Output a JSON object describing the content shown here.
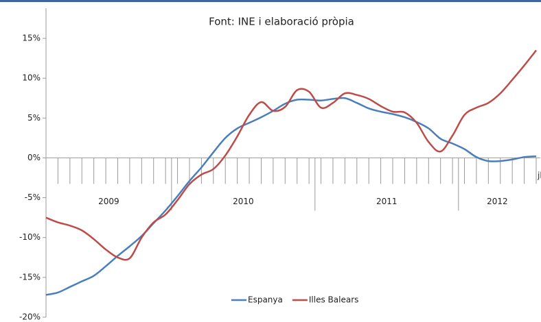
{
  "chart_data": {
    "type": "line",
    "title": "Font: INE i elaboració pròpia",
    "categories": [
      null,
      null,
      null,
      null,
      null,
      null,
      null,
      null,
      null,
      null,
      null,
      null,
      null,
      null,
      null,
      null,
      null,
      null,
      null,
      null,
      null,
      null,
      null,
      null,
      null,
      null,
      null,
      null,
      null,
      null,
      null,
      null,
      null,
      null,
      null,
      null,
      null,
      null,
      null,
      null,
      null,
      "jl"
    ],
    "year_groups": [
      {
        "label": "2009",
        "months": 11
      },
      {
        "label": "2010",
        "months": 12
      },
      {
        "label": "2011",
        "months": 12
      },
      {
        "label": "2012",
        "months": 7
      }
    ],
    "series": [
      {
        "name": "Espanya",
        "color": "#4a7ebb",
        "values": [
          -17.2,
          -16.9,
          -16.2,
          -15.5,
          -14.8,
          -13.6,
          -12.3,
          -11.1,
          -9.8,
          -8.2,
          -6.6,
          -4.8,
          -2.9,
          -1.2,
          0.7,
          2.5,
          3.7,
          4.4,
          5.1,
          5.9,
          6.8,
          7.3,
          7.3,
          7.2,
          7.4,
          7.5,
          6.9,
          6.2,
          5.8,
          5.5,
          5.1,
          4.5,
          3.7,
          2.4,
          1.8,
          1.1,
          0.1,
          -0.4,
          -0.4,
          -0.2,
          0.1,
          0.2
        ]
      },
      {
        "name": "Illes Balears",
        "color": "#be4b48",
        "values": [
          -7.5,
          -8.1,
          -8.5,
          -9.1,
          -10.2,
          -11.5,
          -12.5,
          -12.6,
          -10.0,
          -8.1,
          -7.1,
          -5.3,
          -3.3,
          -2.1,
          -1.4,
          0.3,
          2.7,
          5.4,
          7.0,
          5.9,
          6.4,
          8.5,
          8.3,
          6.3,
          6.9,
          8.1,
          7.9,
          7.4,
          6.5,
          5.8,
          5.7,
          4.4,
          2.0,
          0.8,
          2.8,
          5.4,
          6.3,
          6.9,
          8.1,
          9.8,
          11.6,
          13.5
        ]
      }
    ],
    "ylim": [
      -20,
      15
    ],
    "yticks": [
      {
        "value": -20,
        "label": "-20%"
      },
      {
        "value": -15,
        "label": "-15%"
      },
      {
        "value": -10,
        "label": "-10%"
      },
      {
        "value": -5,
        "label": "-5%"
      },
      {
        "value": 0,
        "label": "0%"
      },
      {
        "value": 5,
        "label": "5%"
      },
      {
        "value": 10,
        "label": "10%"
      },
      {
        "value": 15,
        "label": "15%"
      }
    ],
    "legend": "bottom"
  }
}
